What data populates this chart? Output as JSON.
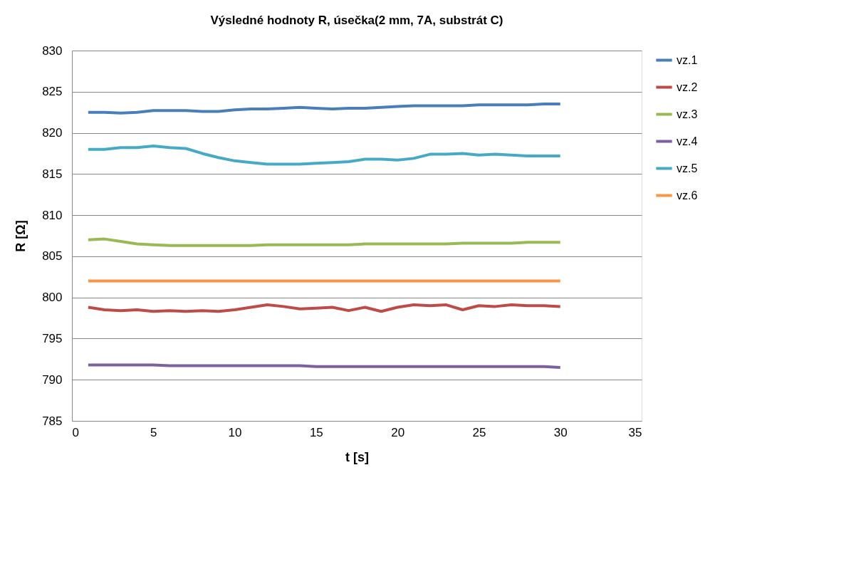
{
  "chart_data": {
    "type": "line",
    "title": "Výsledné hodnoty R, úsečka(2 mm, 7A, substrát C)",
    "xlabel": "t [s]",
    "ylabel": "R [Ω]",
    "x": [
      1,
      2,
      3,
      4,
      5,
      6,
      7,
      8,
      9,
      10,
      11,
      12,
      13,
      14,
      15,
      16,
      17,
      18,
      19,
      20,
      21,
      22,
      23,
      24,
      25,
      26,
      27,
      28,
      29,
      30
    ],
    "series": [
      {
        "name": "vz.1",
        "color": "#4a7ebb",
        "values": [
          822.5,
          822.5,
          822.4,
          822.5,
          822.7,
          822.7,
          822.7,
          822.6,
          822.6,
          822.8,
          822.9,
          822.9,
          823.0,
          823.1,
          823.0,
          822.9,
          823.0,
          823.0,
          823.1,
          823.2,
          823.3,
          823.3,
          823.3,
          823.3,
          823.4,
          823.4,
          823.4,
          823.4,
          823.5,
          823.5
        ]
      },
      {
        "name": "vz.2",
        "color": "#be4b48",
        "values": [
          798.8,
          798.5,
          798.4,
          798.5,
          798.3,
          798.4,
          798.3,
          798.4,
          798.3,
          798.5,
          798.8,
          799.1,
          798.9,
          798.6,
          798.7,
          798.8,
          798.4,
          798.8,
          798.3,
          798.8,
          799.1,
          799.0,
          799.1,
          798.5,
          799.0,
          798.9,
          799.1,
          799.0,
          799.0,
          798.9
        ]
      },
      {
        "name": "vz.3",
        "color": "#98b954",
        "values": [
          807.0,
          807.1,
          806.8,
          806.5,
          806.4,
          806.3,
          806.3,
          806.3,
          806.3,
          806.3,
          806.3,
          806.4,
          806.4,
          806.4,
          806.4,
          806.4,
          806.4,
          806.5,
          806.5,
          806.5,
          806.5,
          806.5,
          806.5,
          806.6,
          806.6,
          806.6,
          806.6,
          806.7,
          806.7,
          806.7
        ]
      },
      {
        "name": "vz.4",
        "color": "#7d60a0",
        "values": [
          791.8,
          791.8,
          791.8,
          791.8,
          791.8,
          791.7,
          791.7,
          791.7,
          791.7,
          791.7,
          791.7,
          791.7,
          791.7,
          791.7,
          791.6,
          791.6,
          791.6,
          791.6,
          791.6,
          791.6,
          791.6,
          791.6,
          791.6,
          791.6,
          791.6,
          791.6,
          791.6,
          791.6,
          791.6,
          791.5
        ]
      },
      {
        "name": "vz.5",
        "color": "#46aac5",
        "values": [
          818.0,
          818.0,
          818.2,
          818.2,
          818.4,
          818.2,
          818.1,
          817.5,
          817.0,
          816.6,
          816.4,
          816.2,
          816.2,
          816.2,
          816.3,
          816.4,
          816.5,
          816.8,
          816.8,
          816.7,
          816.9,
          817.4,
          817.4,
          817.5,
          817.3,
          817.4,
          817.3,
          817.2,
          817.2,
          817.2
        ]
      },
      {
        "name": "vz.6",
        "color": "#f79646",
        "values": [
          802.0,
          802.0,
          802.0,
          802.0,
          802.0,
          802.0,
          802.0,
          802.0,
          802.0,
          802.0,
          802.0,
          802.0,
          802.0,
          802.0,
          802.0,
          802.0,
          802.0,
          802.0,
          802.0,
          802.0,
          802.0,
          802.0,
          802.0,
          802.0,
          802.0,
          802.0,
          802.0,
          802.0,
          802.0,
          802.0
        ]
      }
    ],
    "xlim": [
      0,
      35
    ],
    "xticks": [
      0,
      5,
      10,
      15,
      20,
      25,
      30,
      35
    ],
    "ylim": [
      785,
      830
    ],
    "yticks": [
      785,
      790,
      795,
      800,
      805,
      810,
      815,
      820,
      825,
      830
    ],
    "grid": "y",
    "legend": "right",
    "marker": "none",
    "line_style": "solid"
  }
}
